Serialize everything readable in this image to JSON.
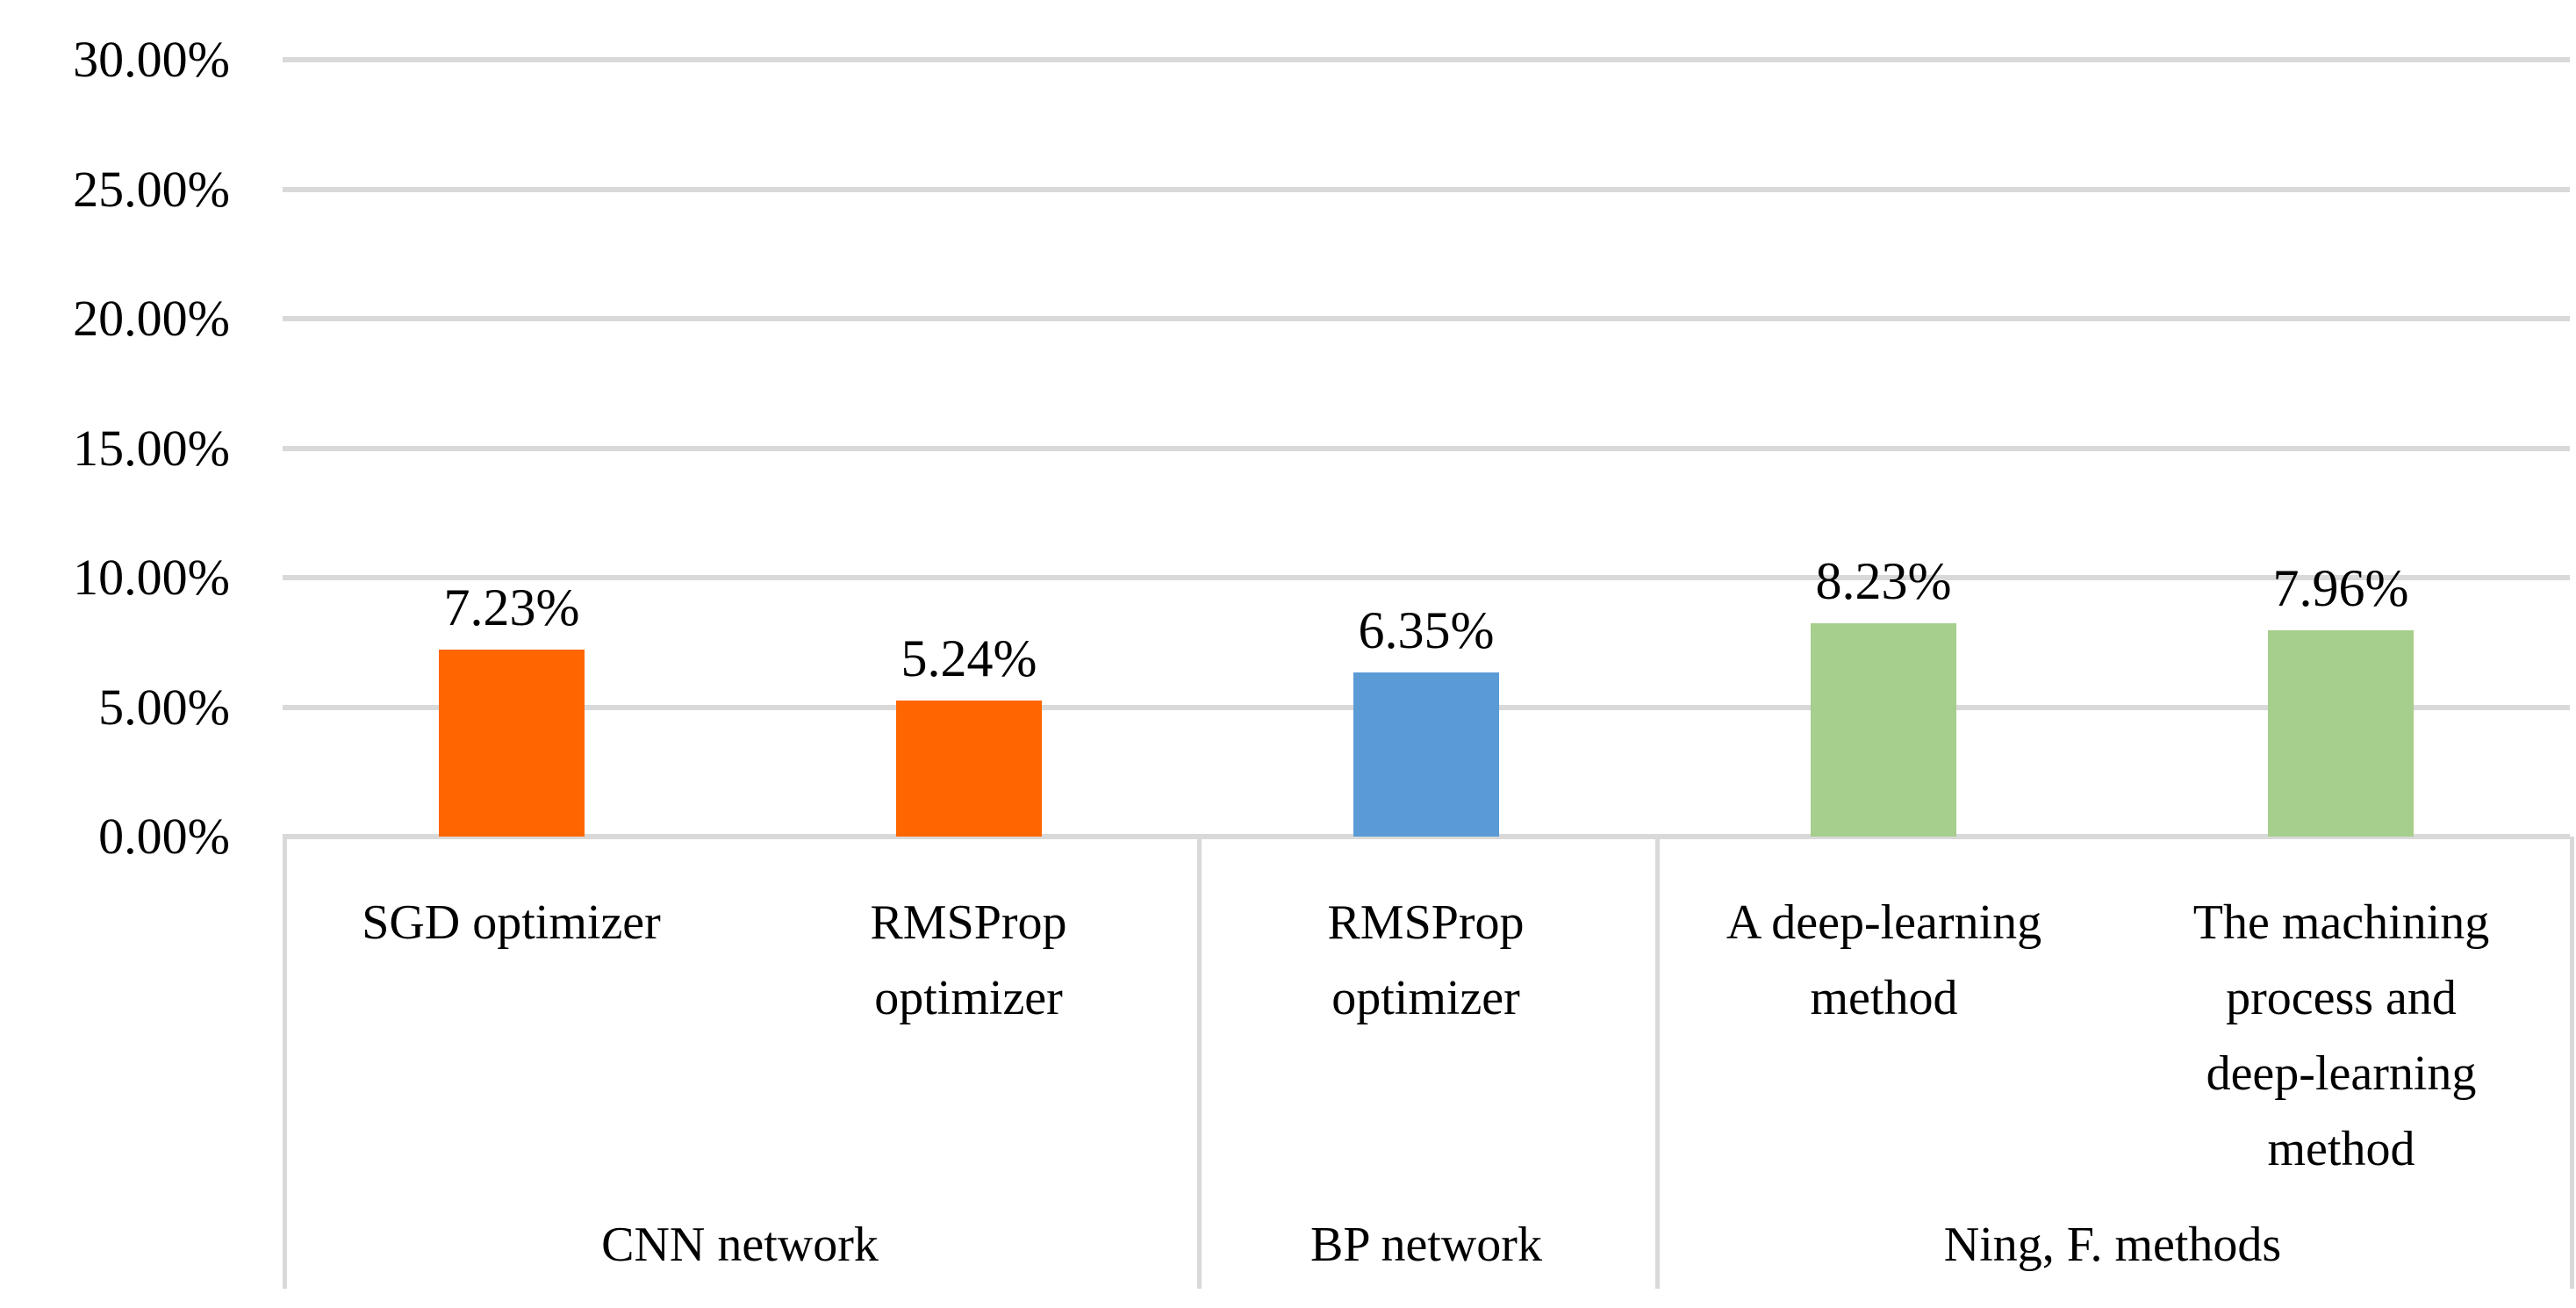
{
  "chart_data": {
    "type": "bar",
    "title": "",
    "xlabel": "",
    "ylabel": "",
    "unit": "percent",
    "categories": [
      "SGD optimizer",
      "RMSProp optimizer",
      "RMSProp optimizer",
      "A deep-learning method",
      "The machining process and deep-learning method"
    ],
    "category_lines": [
      [
        "SGD optimizer"
      ],
      [
        "RMSProp",
        "optimizer"
      ],
      [
        "RMSProp",
        "optimizer"
      ],
      [
        "A deep-learning",
        "method"
      ],
      [
        "The machining",
        "process and",
        "deep-learning",
        "method"
      ]
    ],
    "values": [
      7.23,
      5.24,
      6.35,
      8.23,
      7.96
    ],
    "value_labels": [
      "7.23%",
      "5.24%",
      "6.35%",
      "8.23%",
      "7.96%"
    ],
    "bar_colors": [
      "#FF6600",
      "#FF6600",
      "#5B9BD5",
      "#A6CE8C",
      "#A6CE8C"
    ],
    "groups": [
      {
        "label": "CNN network",
        "span": 2
      },
      {
        "label": "BP network",
        "span": 1
      },
      {
        "label": "Ning, F. methods",
        "span": 2
      }
    ],
    "y_axis": {
      "min": 0,
      "max": 30,
      "step": 5,
      "ylim": [
        0,
        30
      ],
      "tick_labels": [
        "0.00%",
        "5.00%",
        "10.00%",
        "15.00%",
        "20.00%",
        "25.00%",
        "30.00%"
      ]
    },
    "grid": true,
    "legend_position": "none",
    "colors": {
      "gridline": "#D9D9D9",
      "text": "#000000",
      "background": "#FFFFFF"
    }
  }
}
